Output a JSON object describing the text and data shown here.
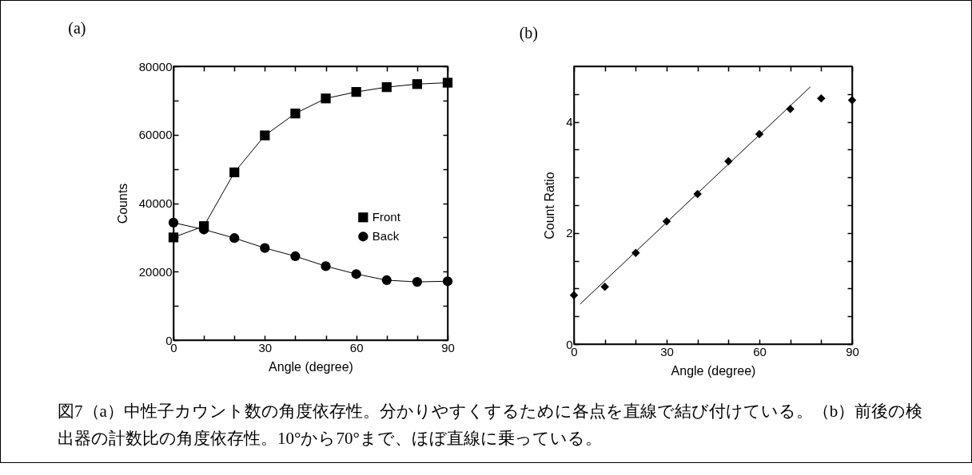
{
  "chart_data": [
    {
      "type": "line",
      "title": "(a)",
      "xlabel": "Angle (degree)",
      "ylabel": "Counts",
      "x": [
        0,
        10,
        20,
        30,
        40,
        50,
        60,
        70,
        80,
        90
      ],
      "series": [
        {
          "name": "Front",
          "color": "#000000",
          "marker": "square",
          "values": [
            30000,
            33300,
            49000,
            59800,
            66200,
            70600,
            72500,
            73900,
            74800,
            75200
          ]
        },
        {
          "name": "Back",
          "color": "#000000",
          "marker": "circle",
          "values": [
            34300,
            32300,
            29800,
            26900,
            24500,
            21600,
            19300,
            17500,
            17000,
            17200
          ]
        }
      ],
      "xlim": [
        0,
        90
      ],
      "ylim": [
        0,
        80000
      ],
      "xticks": [
        0,
        {
          "value": 10,
          "label": null
        },
        {
          "value": 20,
          "label": null
        },
        30,
        {
          "value": 40,
          "label": null
        },
        {
          "value": 50,
          "label": null
        },
        60,
        {
          "value": 70,
          "label": null
        },
        {
          "value": 80,
          "label": null
        },
        90
      ],
      "yticks": [
        0,
        {
          "value": 10000,
          "label": null
        },
        20000,
        {
          "value": 30000,
          "label": null
        },
        40000,
        {
          "value": 50000,
          "label": null
        },
        60000,
        {
          "value": 70000,
          "label": null
        },
        80000
      ],
      "legend": "right",
      "line_style": "solid",
      "annotations": [
        "図7（a）中性子カウント数の角度依存性。分かりやすくするために各点を直線で結び付けている。（b）前後の検出器の計数比の角度依存性。10°から70°まで、ほぼ直線に乗っている。"
      ]
    },
    {
      "type": "scatter",
      "title": "(b)",
      "xlabel": "Angle (degree)",
      "ylabel": "Count Ratio",
      "x": [
        0,
        10,
        20,
        30,
        40,
        50,
        60,
        70,
        80,
        90
      ],
      "series": [
        {
          "color": "#000000",
          "marker": "diamond",
          "values": [
            0.88,
            1.03,
            1.64,
            2.21,
            2.7,
            3.29,
            3.78,
            4.23,
            4.42,
            4.39
          ]
        },
        {
          "type": "line",
          "color": "#000000",
          "marker": "none",
          "x": [
            2,
            76.5
          ],
          "values": [
            0.72,
            4.63
          ]
        }
      ],
      "xlim": [
        0,
        90
      ],
      "ylim": [
        0,
        5
      ],
      "xticks": [
        0,
        {
          "value": 10,
          "label": null
        },
        {
          "value": 20,
          "label": null
        },
        30,
        {
          "value": 40,
          "label": null
        },
        {
          "value": 50,
          "label": null
        },
        60,
        {
          "value": 70,
          "label": null
        },
        {
          "value": 80,
          "label": null
        },
        90
      ],
      "yticks": [
        0,
        {
          "value": 0.5,
          "label": null
        },
        {
          "value": 1,
          "label": null
        },
        {
          "value": 1.5,
          "label": null
        },
        2,
        {
          "value": 2.5,
          "label": null
        },
        {
          "value": 3,
          "label": null
        },
        {
          "value": 3.5,
          "label": null
        },
        4,
        {
          "value": 4.5,
          "label": null
        }
      ]
    }
  ]
}
